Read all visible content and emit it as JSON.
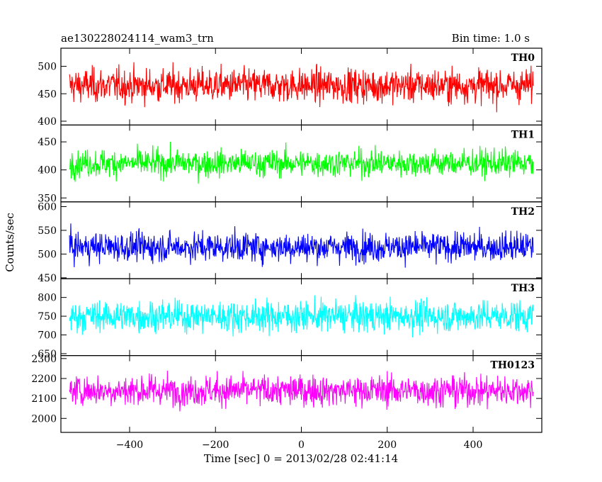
{
  "chart_data": {
    "type": "line",
    "title": "ae130228024114_wam3_trn",
    "subtitle": "Bin time: 1.0 s",
    "xlabel": "Time [sec] 0 = 2013/02/28 02:41:14",
    "ylabel": "Counts/sec",
    "xlim": [
      -560,
      560
    ],
    "x_range_data": [
      -540,
      540
    ],
    "x_ticks": [
      -400,
      -200,
      0,
      200,
      400
    ],
    "x_tick_labels": [
      "−400",
      "−200",
      "0",
      "200",
      "400"
    ],
    "grid": false,
    "panels": [
      {
        "label": "TH0",
        "color": "#ff0000",
        "ylim": [
          393,
          533
        ],
        "y_ticks": [
          400,
          450,
          500
        ],
        "mean": 465,
        "noise": 28
      },
      {
        "label": "TH1",
        "color": "#00ff00",
        "ylim": [
          343,
          480
        ],
        "y_ticks": [
          350,
          400,
          450
        ],
        "mean": 412,
        "noise": 22
      },
      {
        "label": "TH2",
        "color": "#0000ff",
        "ylim": [
          448,
          610
        ],
        "y_ticks": [
          450,
          500,
          550,
          600
        ],
        "mean": 515,
        "noise": 28
      },
      {
        "label": "TH3",
        "color": "#00ffff",
        "ylim": [
          645,
          850
        ],
        "y_ticks": [
          650,
          700,
          750,
          800
        ],
        "mean": 750,
        "noise": 38
      },
      {
        "label": "TH0123",
        "color": "#ff00ff",
        "ylim": [
          1930,
          2315
        ],
        "y_ticks": [
          2000,
          2100,
          2200,
          2300
        ],
        "mean": 2140,
        "noise": 70
      }
    ]
  }
}
